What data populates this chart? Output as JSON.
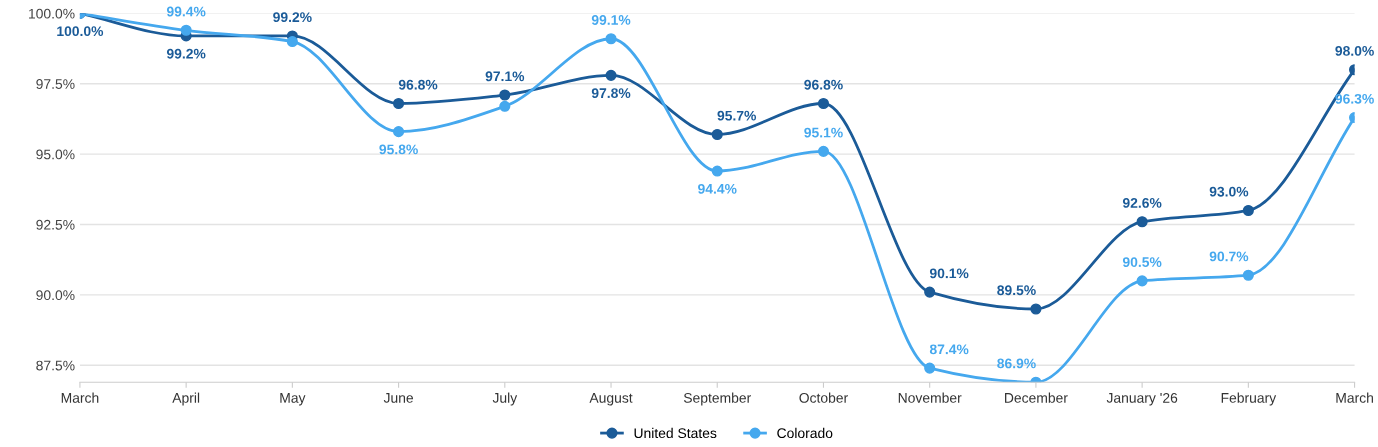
{
  "chart_data": {
    "type": "line",
    "categories": [
      "March",
      "April",
      "May",
      "June",
      "July",
      "August",
      "September",
      "October",
      "November",
      "December",
      "January '26",
      "February",
      "March"
    ],
    "series": [
      {
        "name": "United States",
        "color": "#1b5b98",
        "values": [
          100.0,
          99.2,
          99.2,
          96.8,
          97.1,
          97.8,
          95.7,
          96.8,
          90.1,
          89.5,
          92.6,
          93.0,
          98.0
        ],
        "value_labels": [
          "100.0%",
          "99.2%",
          "99.2%",
          "96.8%",
          "97.1%",
          "97.8%",
          "95.7%",
          "96.8%",
          "90.1%",
          "89.5%",
          "92.6%",
          "93.0%",
          "98.0%"
        ]
      },
      {
        "name": "Colorado",
        "color": "#45a8ee",
        "values": [
          100.0,
          99.4,
          99.0,
          95.8,
          96.7,
          99.1,
          94.4,
          95.1,
          87.4,
          86.9,
          90.5,
          90.7,
          96.3
        ],
        "value_labels": [
          null,
          "99.4%",
          null,
          "95.8%",
          null,
          "99.1%",
          "94.4%",
          "95.1%",
          "87.4%",
          "86.9%",
          "90.5%",
          "90.7%",
          "96.3%"
        ]
      }
    ],
    "ylim": [
      86.9,
      100.0
    ],
    "yticks": [
      {
        "value": 87.5,
        "label": "87.5%"
      },
      {
        "value": 90.0,
        "label": "90.0%"
      },
      {
        "value": 92.5,
        "label": "92.5%"
      },
      {
        "value": 95.0,
        "label": "95.0%"
      },
      {
        "value": 97.5,
        "label": "97.5%"
      },
      {
        "value": 100.0,
        "label": "100.0%"
      }
    ],
    "grid": "y",
    "legend": "bottom",
    "marker": "circle",
    "line_style": "solid"
  }
}
